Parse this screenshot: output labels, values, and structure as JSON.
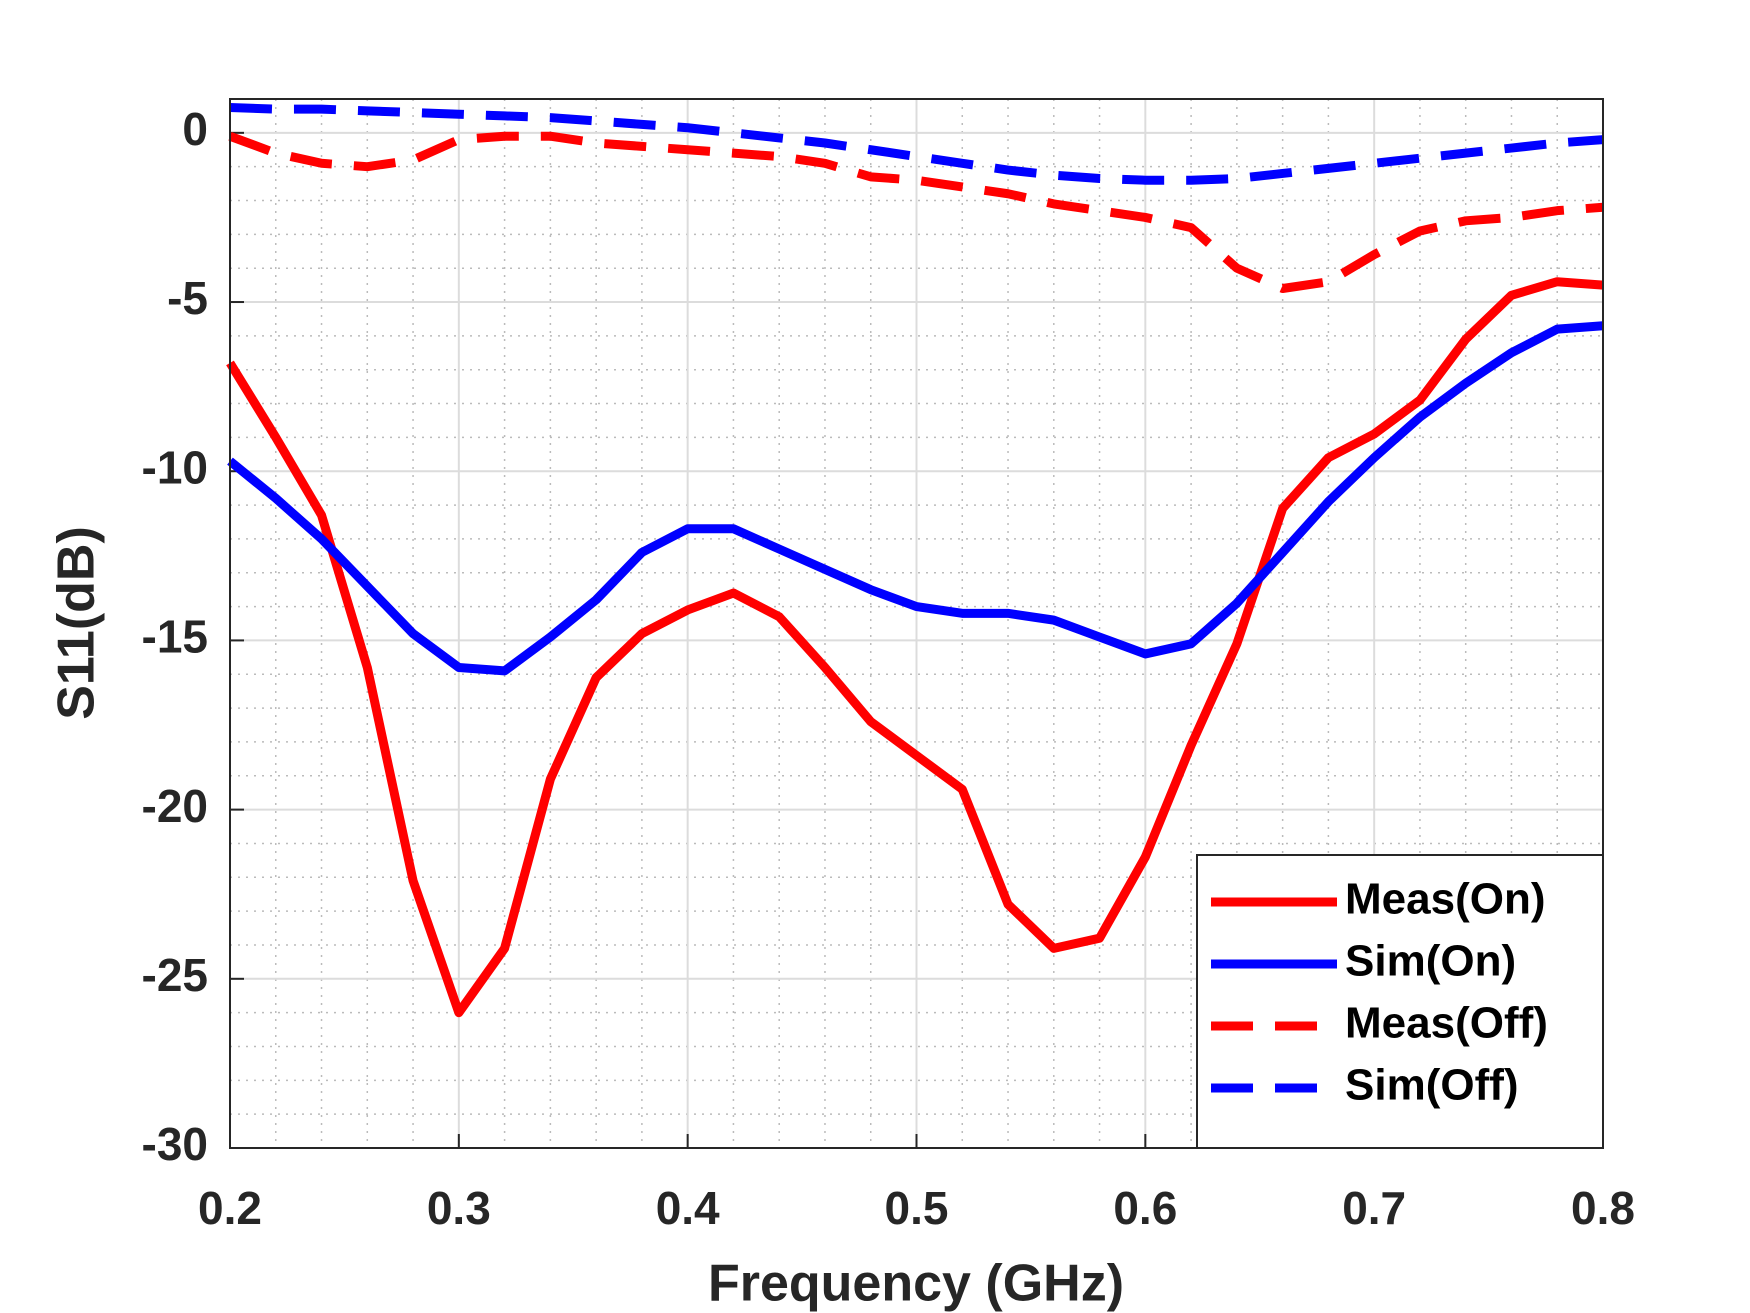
{
  "chart_data": {
    "type": "line",
    "xlabel": "Frequency (GHz)",
    "ylabel": "S11(dB)",
    "x": [
      0.2,
      0.22,
      0.24,
      0.26,
      0.28,
      0.3,
      0.32,
      0.34,
      0.36,
      0.38,
      0.4,
      0.42,
      0.44,
      0.46,
      0.48,
      0.5,
      0.52,
      0.54,
      0.56,
      0.58,
      0.6,
      0.62,
      0.64,
      0.66,
      0.68,
      0.7,
      0.72,
      0.74,
      0.76,
      0.78,
      0.8
    ],
    "series": [
      {
        "name": "Meas(On)",
        "color": "#ff0000",
        "linestyle": "solid",
        "values": [
          -6.8,
          -9.0,
          -11.3,
          -15.8,
          -22.1,
          -26.0,
          -24.1,
          -19.1,
          -16.1,
          -14.8,
          -14.1,
          -13.6,
          -14.3,
          -15.8,
          -17.4,
          -18.4,
          -19.4,
          -22.8,
          -24.1,
          -23.8,
          -21.4,
          -18.1,
          -15.1,
          -11.1,
          -9.6,
          -8.9,
          -7.9,
          -6.1,
          -4.8,
          -4.4,
          -4.5
        ]
      },
      {
        "name": "Sim(On)",
        "color": "#0000ff",
        "linestyle": "solid",
        "values": [
          -9.7,
          -10.8,
          -12.0,
          -13.4,
          -14.8,
          -15.8,
          -15.9,
          -14.9,
          -13.8,
          -12.4,
          -11.7,
          -11.7,
          -12.3,
          -12.9,
          -13.5,
          -14.0,
          -14.2,
          -14.2,
          -14.4,
          -14.9,
          -15.4,
          -15.1,
          -13.9,
          -12.4,
          -10.9,
          -9.6,
          -8.4,
          -7.4,
          -6.5,
          -5.8,
          -5.7
        ]
      },
      {
        "name": "Meas(Off)",
        "color": "#ff0000",
        "linestyle": "dashed",
        "values": [
          -0.1,
          -0.6,
          -0.9,
          -1.0,
          -0.8,
          -0.2,
          -0.1,
          -0.1,
          -0.3,
          -0.4,
          -0.5,
          -0.6,
          -0.7,
          -0.9,
          -1.3,
          -1.4,
          -1.6,
          -1.8,
          -2.1,
          -2.3,
          -2.5,
          -2.8,
          -4.0,
          -4.6,
          -4.4,
          -3.6,
          -2.9,
          -2.6,
          -2.5,
          -2.3,
          -2.2
        ]
      },
      {
        "name": "Sim(Off)",
        "color": "#0000ff",
        "linestyle": "dashed",
        "values": [
          0.75,
          0.7,
          0.7,
          0.65,
          0.6,
          0.55,
          0.5,
          0.45,
          0.35,
          0.25,
          0.15,
          0,
          -0.15,
          -0.3,
          -0.5,
          -0.7,
          -0.9,
          -1.1,
          -1.25,
          -1.35,
          -1.4,
          -1.4,
          -1.35,
          -1.2,
          -1.05,
          -0.9,
          -0.75,
          -0.6,
          -0.45,
          -0.3,
          -0.2
        ]
      }
    ],
    "xlim": [
      0.2,
      0.8
    ],
    "xticks": [
      0.2,
      0.3,
      0.4,
      0.5,
      0.6,
      0.7,
      0.8
    ],
    "ylim": [
      -30,
      1
    ],
    "yticks": [
      -30,
      -25,
      -20,
      -15,
      -10,
      -5,
      0
    ],
    "grid": true,
    "legend": "lower right"
  }
}
